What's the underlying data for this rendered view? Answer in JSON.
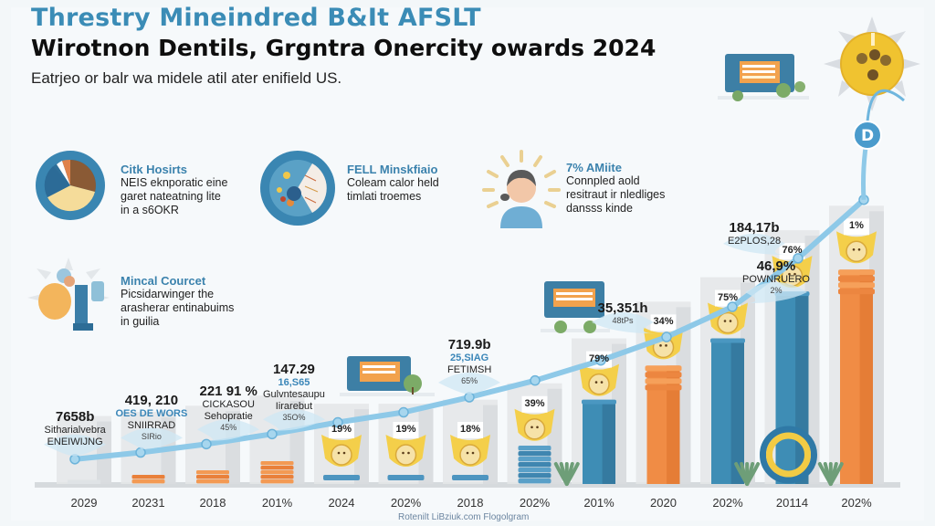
{
  "header": {
    "title": "Threstry Mineindred B&It AFSLT",
    "headline": "Wirotnon Dentils, Grgntra Onercity owards 2024",
    "subtitle": "Eatrjeo or balr wa midele atil ater enifield US."
  },
  "info_cards": [
    {
      "heading": "Citk Hosirts",
      "lines": [
        "NEIS eknporatic eine",
        "garet nateatning lite",
        "in a s6OKR"
      ],
      "icon": "pie-chart-icon"
    },
    {
      "heading": "FELL Minskfiaio",
      "lines": [
        "Coleam calor held",
        "timlati troemes"
      ],
      "icon": "mosaic-disc-icon"
    },
    {
      "heading": "7% AMiite",
      "lines": [
        "Connpled aold",
        "resitraut ir nledliges",
        "dansss kinde"
      ],
      "icon": "person-avatar-icon"
    },
    {
      "heading": "Mincal Courcet",
      "lines": [
        "Picsidarwinger the",
        "arasherar entinabuims",
        "in guilia"
      ],
      "icon": "machine-illustration-icon"
    }
  ],
  "colors": {
    "accent_blue": "#3b8cb6",
    "trend_line": "#8ec9e8",
    "bar_orange": "#f08c45",
    "bar_blue": "#3e8db5",
    "bar_gray": "#e4e6e8",
    "medal_yellow": "#f4cf4a"
  },
  "chart_data": {
    "type": "bar",
    "title": "Threstry Mineindred B&It AFSLT",
    "xlabel": "",
    "ylabel": "",
    "categories": [
      "2029",
      "20231",
      "2018",
      "201%",
      "2024",
      "202%",
      "2018",
      "202%",
      "201%",
      "2020",
      "202%",
      "20114",
      "202%"
    ],
    "series": [
      {
        "name": "bars",
        "values": [
          2,
          4,
          7,
          12,
          8,
          8,
          10,
          18,
          40,
          58,
          70,
          93,
          105
        ],
        "styles": [
          "gray",
          "orange-stack",
          "orange-stack",
          "orange-stack",
          "medal",
          "medal",
          "medal",
          "blue-stack",
          "blue",
          "orange",
          "blue",
          "blue",
          "orange"
        ]
      },
      {
        "name": "trend",
        "values": [
          5,
          9,
          14,
          20,
          27,
          33,
          42,
          52,
          64,
          78,
          96,
          125,
          160
        ]
      }
    ],
    "bar_percent_labels": [
      "",
      "",
      "",
      "",
      "19%",
      "19%",
      "18%",
      "39%",
      "79%",
      "34%",
      "75%",
      "76%",
      "1%"
    ],
    "annotations": [
      {
        "index": 0,
        "value": "7658b",
        "lines": [
          "Sitharialvebra",
          "ENEIWIJNG"
        ]
      },
      {
        "index": 1,
        "value": "419, 210",
        "sub": "OES DE WORS",
        "lines": [
          "SNIIRRAD"
        ],
        "pct": "SIRio"
      },
      {
        "index": 2,
        "value": "221 91 %",
        "lines": [
          "CICKASOU",
          "Sehopratie"
        ],
        "pct": "45%"
      },
      {
        "index": 3,
        "value": "147.29",
        "sub": "16,S65",
        "lines": [
          "Gulvntesaupu",
          "Iirarebut"
        ],
        "pct": "35O%"
      },
      {
        "index": 6,
        "value": "719.9b",
        "sub": "25,SIAG",
        "lines": [
          "FETIMSH"
        ],
        "pct": "65%"
      },
      {
        "index": 9,
        "value": "35,351h",
        "lines": [],
        "pct": "48tPs"
      },
      {
        "index": 10,
        "value": "46,9%",
        "lines": [
          "POWNRUERO"
        ],
        "pct": "2%"
      },
      {
        "index": 11,
        "value": "184,17b",
        "lines": [
          "E2PLOS,28"
        ]
      }
    ],
    "trend_end_badge": "D",
    "ylim": [
      0,
      170
    ],
    "grid": false,
    "legend": "none"
  },
  "footer": {
    "credit": "Rotenilt LiBziuk.com Flogolgram"
  }
}
